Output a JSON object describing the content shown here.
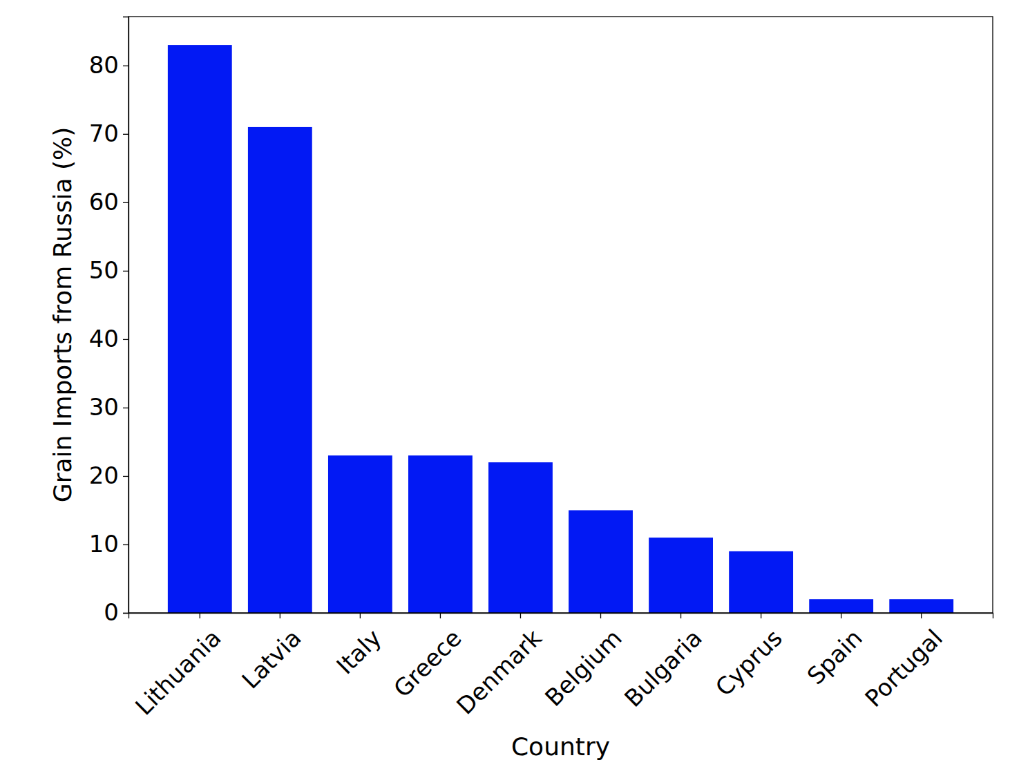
{
  "chart_data": {
    "type": "bar",
    "x_label": "Country",
    "y_label": "Grain Imports from Russia (%)",
    "categories": [
      "Lithuania",
      "Latvia",
      "Italy",
      "Greece",
      "Denmark",
      "Belgium",
      "Bulgaria",
      "Cyprus",
      "Spain",
      "Portugal"
    ],
    "values": [
      83,
      71,
      23,
      23,
      22,
      15,
      11,
      9,
      2,
      2
    ],
    "color": "#0219f4",
    "ylim": [
      0,
      87.15
    ],
    "yticks": [
      0,
      10,
      20,
      30,
      40,
      50,
      60,
      70,
      80
    ],
    "grid": false
  }
}
